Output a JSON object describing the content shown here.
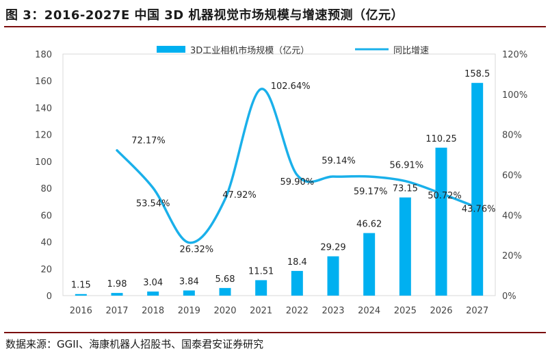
{
  "figure": {
    "title": "图 3：2016-2027E 中国 3D 机器视觉市场规模与增速预测（亿元）",
    "source": "数据来源：GGII、海康机器人招股书、国泰君安证券研究"
  },
  "colors": {
    "bar": "#00b0f0",
    "line": "#1ab0ea",
    "rule": "#7a0d0d",
    "grid": "#d9d9d9"
  },
  "chart_data": {
    "type": "bar",
    "categories": [
      "2016",
      "2017",
      "2018",
      "2019",
      "2020",
      "2021",
      "2022",
      "2023",
      "2024",
      "2025",
      "2026",
      "2027"
    ],
    "series": [
      {
        "name": "3D工业相机市场规模（亿元）",
        "kind": "bar",
        "axis": "left",
        "values": [
          1.15,
          1.98,
          3.04,
          3.84,
          5.68,
          11.51,
          18.4,
          29.29,
          46.62,
          73.15,
          110.25,
          158.5
        ],
        "labels": [
          "1.15",
          "1.98",
          "3.04",
          "3.84",
          "5.68",
          "11.51",
          "18.4",
          "29.29",
          "46.62",
          "73.15",
          "110.25",
          "158.5"
        ]
      },
      {
        "name": "同比增速",
        "kind": "line",
        "axis": "right",
        "values": [
          null,
          72.17,
          53.54,
          26.32,
          47.92,
          102.64,
          59.9,
          59.14,
          59.17,
          56.91,
          50.72,
          43.76
        ],
        "labels": [
          "",
          "72.17%",
          "53.54%",
          "26.32%",
          "47.92%",
          "102.64%",
          "59.90%",
          "59.14%",
          "59.17%",
          "56.91%",
          "50.72%",
          "43.76%"
        ]
      }
    ],
    "y_left": {
      "min": 0,
      "max": 180,
      "ticks": [
        "0",
        "20",
        "40",
        "60",
        "80",
        "100",
        "120",
        "140",
        "160",
        "180"
      ]
    },
    "y_right": {
      "min": 0,
      "max": 120,
      "ticks": [
        "0%",
        "20%",
        "40%",
        "60%",
        "80%",
        "100%",
        "120%"
      ]
    },
    "legend_position": "top",
    "grid": false
  }
}
